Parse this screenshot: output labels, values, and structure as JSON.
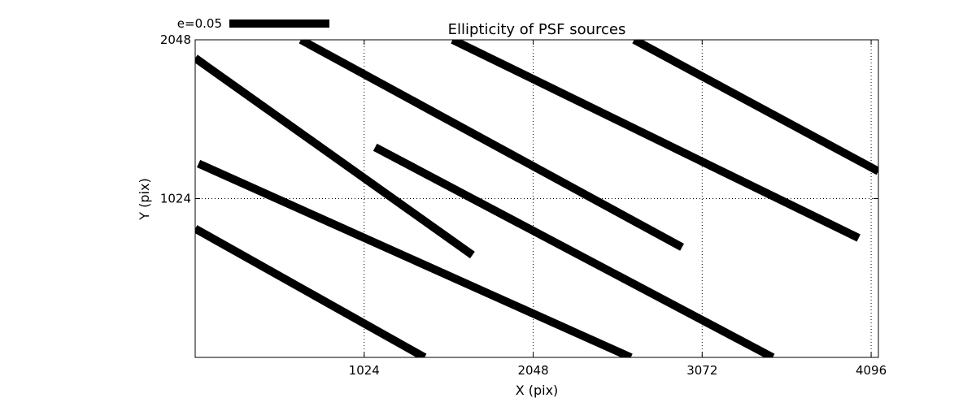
{
  "chart_data": {
    "type": "line",
    "title": "Ellipticity of PSF sources",
    "xlabel": "X (pix)",
    "ylabel": "Y (pix)",
    "xlim": [
      0,
      4140
    ],
    "ylim": [
      0,
      2048
    ],
    "x_ticks": [
      {
        "value": 1024,
        "label": "1024"
      },
      {
        "value": 2048,
        "label": "2048"
      },
      {
        "value": 3072,
        "label": "3072"
      },
      {
        "value": 4096,
        "label": "4096"
      }
    ],
    "y_ticks": [
      {
        "value": 1024,
        "label": "1024"
      },
      {
        "value": 2048,
        "label": "2048"
      }
    ],
    "grid": true,
    "legend": {
      "label": "e=0.05",
      "position": "top-left"
    },
    "color": "#000000",
    "series": [
      {
        "points": [
          [
            0,
            1930
          ],
          [
            1680,
            660
          ]
        ]
      },
      {
        "points": [
          [
            640,
            2048
          ],
          [
            2950,
            710
          ]
        ]
      },
      {
        "points": [
          [
            1560,
            2048
          ],
          [
            4020,
            770
          ]
        ]
      },
      {
        "points": [
          [
            2660,
            2048
          ],
          [
            4140,
            1200
          ]
        ]
      },
      {
        "points": [
          [
            1090,
            1355
          ],
          [
            3500,
            0
          ]
        ]
      },
      {
        "points": [
          [
            20,
            1250
          ],
          [
            2640,
            0
          ]
        ]
      },
      {
        "points": [
          [
            0,
            830
          ],
          [
            1390,
            0
          ]
        ]
      }
    ]
  }
}
